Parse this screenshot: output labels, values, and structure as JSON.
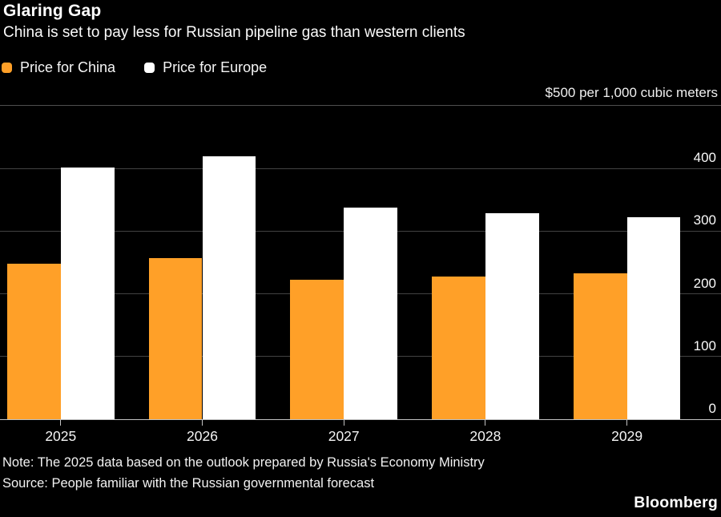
{
  "header": {
    "title": "Glaring Gap",
    "subtitle": "China is set to pay less for Russian pipeline gas than western clients"
  },
  "colors": {
    "background": "#000000",
    "china_bar": "#ffa028",
    "europe_bar": "#ffffff",
    "gridline": "#424242",
    "axis_line": "#c2c2c2",
    "text": "#f5f5f5"
  },
  "chart_data": {
    "type": "bar",
    "categories": [
      "2025",
      "2026",
      "2027",
      "2028",
      "2029"
    ],
    "series": [
      {
        "name": "Price for China",
        "color": "#ffa028",
        "values": [
          248,
          257,
          222,
          228,
          233
        ]
      },
      {
        "name": "Price for Europe",
        "color": "#ffffff",
        "values": [
          402,
          420,
          337,
          329,
          322
        ]
      }
    ],
    "title": "Glaring Gap",
    "subtitle": "China is set to pay less for Russian pipeline gas than western clients",
    "unit_label": "$500 per 1,000 cubic meters",
    "xlabel": "",
    "ylabel": "$ per 1,000 cubic meters",
    "ylim": [
      0,
      500
    ],
    "yticks": [
      0,
      100,
      200,
      300,
      400
    ],
    "grid": true,
    "legend_position": "top-left"
  },
  "footer": {
    "note": "Note: The 2025 data based on the outlook prepared by Russia's Economy Ministry",
    "source": "Source: People familiar with the Russian governmental forecast",
    "brand": "Bloomberg"
  }
}
